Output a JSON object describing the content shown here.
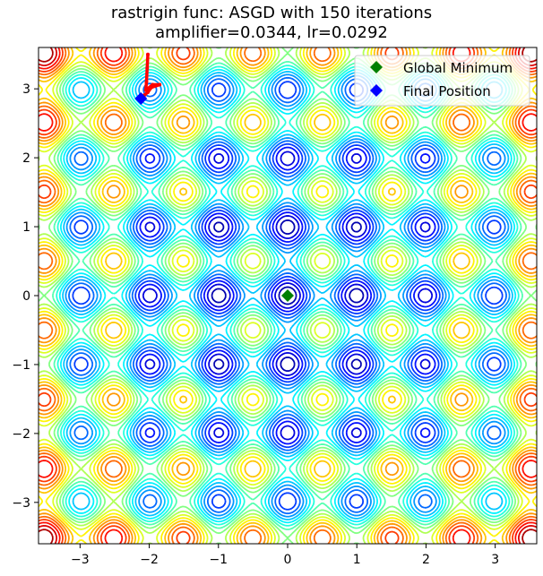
{
  "chart_data": {
    "type": "contour",
    "title": "rastrigin func: ASGD with 150 iterations",
    "subtitle": "amplifier=0.0344, lr=0.0292",
    "function": "rastrigin",
    "xlim": [
      -3.6,
      3.6
    ],
    "ylim": [
      -3.6,
      3.6
    ],
    "xticks": [
      -3,
      -2,
      -1,
      0,
      1,
      2,
      3
    ],
    "yticks": [
      -3,
      -2,
      -1,
      0,
      1,
      2,
      3
    ],
    "xtick_labels": [
      "−3",
      "−2",
      "−1",
      "0",
      "1",
      "2",
      "3"
    ],
    "ytick_labels": [
      "−3",
      "−2",
      "−1",
      "0",
      "1",
      "2",
      "3"
    ],
    "colormap": "jet",
    "legend": {
      "placement": "top-right",
      "entries": [
        {
          "label": "Global Minimum",
          "color": "#008000",
          "marker": "diamond"
        },
        {
          "label": "Final Position",
          "color": "#0000ff",
          "marker": "diamond"
        }
      ]
    },
    "global_minimum": {
      "x": 0.0,
      "y": 0.0
    },
    "final_position": {
      "x": -2.12,
      "y": 2.86
    },
    "path_color": "#ff0000",
    "path": [
      [
        -2.02,
        3.5
      ],
      [
        -2.03,
        3.3
      ],
      [
        -2.04,
        3.1
      ],
      [
        -2.05,
        2.98
      ],
      [
        -1.95,
        3.06
      ],
      [
        -1.85,
        3.06
      ],
      [
        -1.97,
        3.02
      ],
      [
        -2.02,
        2.95
      ],
      [
        -2.07,
        2.91
      ],
      [
        -2.12,
        2.86
      ]
    ]
  }
}
